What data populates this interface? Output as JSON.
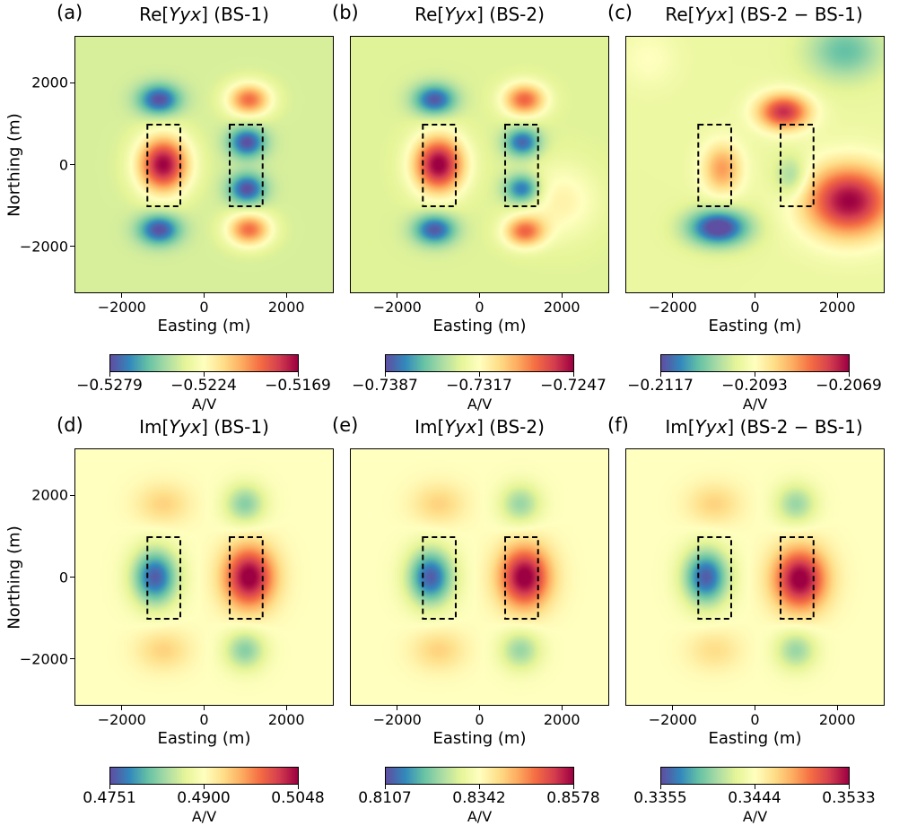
{
  "chart_data": [
    {
      "type": "heatmap",
      "panel": "(a)",
      "title_pre": "Re[",
      "title_var": "Yyx",
      "title_post": "] (BS-1)",
      "xlabel": "Easting (m)",
      "ylabel": "Northing (m)",
      "xticks": [
        "−2000",
        "0",
        "2000"
      ],
      "yticks": [
        "2000",
        "0",
        "−2000"
      ],
      "colorbar": {
        "ticks": [
          "−0.5279",
          "−0.5224",
          "−0.5169"
        ],
        "range": [
          -0.5279,
          -0.5169
        ],
        "label": "A/V"
      },
      "colormap": "Spectral_r",
      "boxes": [
        [
          -1400,
          -600,
          -1000,
          1000
        ],
        [
          600,
          1400,
          -1000,
          1000
        ]
      ]
    },
    {
      "type": "heatmap",
      "panel": "(b)",
      "title_pre": "Re[",
      "title_var": "Yyx",
      "title_post": "] (BS-2)",
      "xlabel": "Easting (m)",
      "ylabel": "",
      "xticks": [
        "−2000",
        "0",
        "2000"
      ],
      "yticks": [],
      "colorbar": {
        "ticks": [
          "−0.7387",
          "−0.7317",
          "−0.7247"
        ],
        "range": [
          -0.7387,
          -0.7247
        ],
        "label": "A/V"
      },
      "colormap": "Spectral_r",
      "boxes": [
        [
          -1400,
          -600,
          -1000,
          1000
        ],
        [
          600,
          1400,
          -1000,
          1000
        ]
      ]
    },
    {
      "type": "heatmap",
      "panel": "(c)",
      "title_pre": "Re[",
      "title_var": "Yyx",
      "title_post": "] (BS-2 − BS-1)",
      "xlabel": "Easting (m)",
      "ylabel": "",
      "xticks": [
        "−2000",
        "0",
        "2000"
      ],
      "yticks": [],
      "colorbar": {
        "ticks": [
          "−0.2117",
          "−0.2093",
          "−0.2069"
        ],
        "range": [
          -0.2117,
          -0.2069
        ],
        "label": "A/V"
      },
      "colormap": "Spectral_r",
      "boxes": [
        [
          -1400,
          -600,
          -1000,
          1000
        ],
        [
          600,
          1400,
          -1000,
          1000
        ]
      ]
    },
    {
      "type": "heatmap",
      "panel": "(d)",
      "title_pre": "Im[",
      "title_var": "Yyx",
      "title_post": "] (BS-1)",
      "xlabel": "Easting (m)",
      "ylabel": "Northing (m)",
      "xticks": [
        "−2000",
        "0",
        "2000"
      ],
      "yticks": [
        "2000",
        "0",
        "−2000"
      ],
      "colorbar": {
        "ticks": [
          "0.4751",
          "0.4900",
          "0.5048"
        ],
        "range": [
          0.4751,
          0.5048
        ],
        "label": "A/V"
      },
      "colormap": "Spectral_r",
      "boxes": [
        [
          -1400,
          -600,
          -1000,
          1000
        ],
        [
          600,
          1400,
          -1000,
          1000
        ]
      ]
    },
    {
      "type": "heatmap",
      "panel": "(e)",
      "title_pre": "Im[",
      "title_var": "Yyx",
      "title_post": "] (BS-2)",
      "xlabel": "Easting (m)",
      "ylabel": "",
      "xticks": [
        "−2000",
        "0",
        "2000"
      ],
      "yticks": [],
      "colorbar": {
        "ticks": [
          "0.8107",
          "0.8342",
          "0.8578"
        ],
        "range": [
          0.8107,
          0.8578
        ],
        "label": "A/V"
      },
      "colormap": "Spectral_r",
      "boxes": [
        [
          -1400,
          -600,
          -1000,
          1000
        ],
        [
          600,
          1400,
          -1000,
          1000
        ]
      ]
    },
    {
      "type": "heatmap",
      "panel": "(f)",
      "title_pre": "Im[",
      "title_var": "Yyx",
      "title_post": "] (BS-2 − BS-1)",
      "xlabel": "Easting (m)",
      "ylabel": "",
      "xticks": [
        "−2000",
        "0",
        "2000"
      ],
      "yticks": [],
      "colorbar": {
        "ticks": [
          "0.3355",
          "0.3444",
          "0.3533"
        ],
        "range": [
          0.3355,
          0.3533
        ],
        "label": "A/V"
      },
      "colormap": "Spectral_r",
      "boxes": [
        [
          -1400,
          -600,
          -1000,
          1000
        ],
        [
          600,
          1400,
          -1000,
          1000
        ]
      ]
    }
  ],
  "axes": {
    "xlim": [
      -3150,
      3150
    ],
    "ylim": [
      -3150,
      3150
    ],
    "tick_values": [
      -2000,
      0,
      2000
    ]
  },
  "colormap_stops": [
    "#5e4fa2",
    "#3288bd",
    "#66c2a5",
    "#abdda4",
    "#e6f598",
    "#ffffbf",
    "#fee08b",
    "#fdae61",
    "#f46d43",
    "#d53e4f",
    "#9e0142"
  ]
}
